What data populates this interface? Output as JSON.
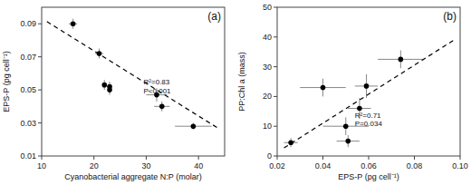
{
  "chart_data": [
    {
      "type": "scatter",
      "title": "(a)",
      "x_label": "Cyanobacterial aggregate N:P (molar)",
      "y_label": "EPS-P (pg cell⁻¹)",
      "xlim": [
        10,
        45
      ],
      "ylim": [
        0.01,
        0.1
      ],
      "xticks": [
        10,
        20,
        30,
        40
      ],
      "yticks": [
        0.01,
        0.03,
        0.05,
        0.07,
        0.09
      ],
      "grid": false,
      "series": [
        {
          "type": "scatter",
          "marker": "circle",
          "color": "#000000",
          "x": [
            16,
            21,
            22,
            23,
            23,
            32,
            33,
            39
          ],
          "values": [
            0.09,
            0.072,
            0.053,
            0.05,
            0.052,
            0.047,
            0.04,
            0.028
          ],
          "x_err": [
            0.8,
            0.8,
            0.4,
            0.4,
            0.4,
            2.0,
            1.5,
            3.5
          ],
          "y_err": [
            0.003,
            0.003,
            0.003,
            0.003,
            0.003,
            0.004,
            0.003,
            0.002
          ]
        },
        {
          "type": "line",
          "line_style": "dashed",
          "color": "#000000",
          "x": [
            11,
            44
          ],
          "values": [
            0.09133,
            0.02632
          ]
        }
      ],
      "annotations": [
        {
          "text": "R²=0.83\nP<0.001",
          "x": 29.5,
          "y": 0.057
        }
      ]
    },
    {
      "type": "scatter",
      "title": "(b)",
      "x_label": "EPS-P (pg cell⁻¹)",
      "y_label": "PP:Chl a (mass)",
      "xlim": [
        0.02,
        0.1
      ],
      "ylim": [
        0,
        50
      ],
      "xticks": [
        0.02,
        0.04,
        0.06,
        0.08,
        {
          "value": 0.1,
          "label": "0.10"
        }
      ],
      "yticks": [
        0,
        10,
        20,
        30,
        40,
        50
      ],
      "grid": false,
      "series": [
        {
          "type": "scatter",
          "marker": "circle",
          "color": "#000000",
          "x": [
            0.026,
            0.04,
            0.05,
            0.051,
            0.056,
            0.059,
            0.074
          ],
          "values": [
            4.5,
            23.0,
            10.0,
            5.0,
            16.0,
            23.5,
            32.5
          ],
          "x_err": [
            0.003,
            0.01,
            0.01,
            0.005,
            0.005,
            0.005,
            0.01
          ],
          "y_err": [
            1.5,
            3.0,
            3.0,
            2.0,
            3.5,
            4.0,
            3.0
          ]
        },
        {
          "type": "line",
          "line_style": "dashed",
          "color": "#000000",
          "x": [
            0.023,
            0.098
          ],
          "values": [
            2.724,
            39.324
          ]
        }
      ],
      "annotations": [
        {
          "text": "R²=0.71\nP=0.034",
          "x": 0.054,
          "y": 15
        }
      ]
    }
  ]
}
